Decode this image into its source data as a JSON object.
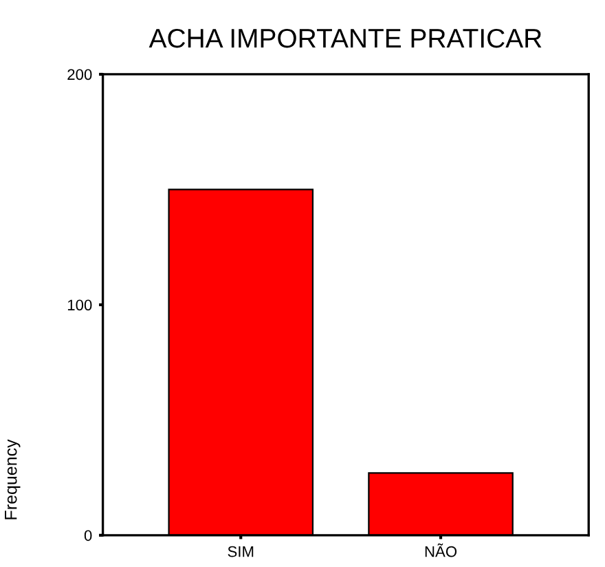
{
  "chart_data": {
    "type": "bar",
    "title": "ACHA IMPORTANTE PRATICAR",
    "ylabel": "Frequency",
    "categories": [
      "SIM",
      "NÃO"
    ],
    "values": [
      150,
      27
    ],
    "color": "#ff0000",
    "ylim": [
      0,
      200
    ],
    "yticks": [
      0,
      100,
      200
    ],
    "grid": false,
    "legend": false
  }
}
